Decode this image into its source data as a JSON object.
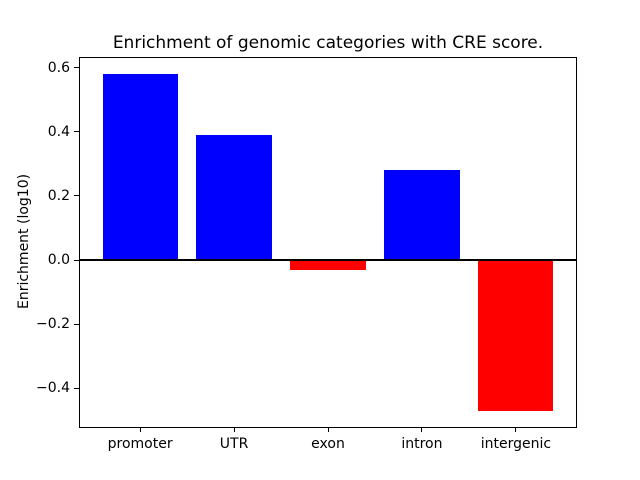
{
  "figure": {
    "background": "#ffffff"
  },
  "chart_data": {
    "type": "bar",
    "title": "Enrichment of genomic categories with CRE score.",
    "ylabel": "Enrichment (log10)",
    "xlabel": "",
    "categories": [
      "promoter",
      "UTR",
      "exon",
      "intron",
      "intergenic"
    ],
    "values": [
      0.58,
      0.39,
      -0.03,
      0.28,
      -0.47
    ],
    "bar_colors": [
      "#0000ff",
      "#0000ff",
      "#ff0000",
      "#0000ff",
      "#ff0000"
    ],
    "positive_color": "#0000ff",
    "negative_color": "#ff0000",
    "axis_color": "#000000",
    "zero_line": true,
    "grid": false,
    "legend": null,
    "ylim": [
      -0.52,
      0.63
    ],
    "xlim": [
      -0.64,
      4.64
    ],
    "bar_width_units": 0.8,
    "yticks": [
      -0.4,
      -0.2,
      0.0,
      0.2,
      0.4,
      0.6
    ],
    "ytick_labels": [
      "−0.4",
      "−0.2",
      "0.0",
      "0.2",
      "0.4",
      "0.6"
    ]
  }
}
